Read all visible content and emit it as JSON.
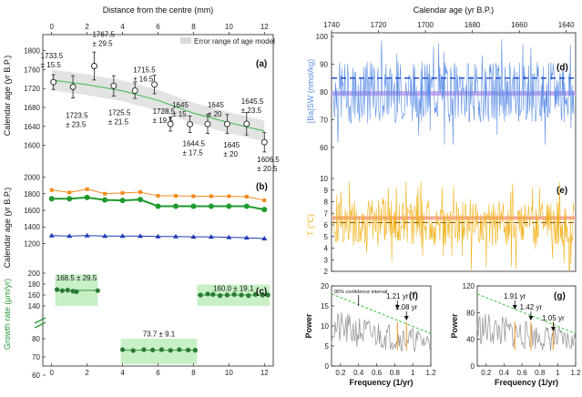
{
  "chart_data": [
    {
      "id": "a",
      "type": "scatter",
      "panel_label": "(a)",
      "xlabel": "Distance from the centre (mm)",
      "ylabel": "Calendar age (yr B.P.)",
      "xlim": [
        -0.5,
        12.5
      ],
      "ylim": [
        1580,
        1830
      ],
      "xticks": [
        0,
        2,
        4,
        6,
        8,
        10,
        12
      ],
      "yticks": [
        1600,
        1640,
        1680,
        1720,
        1760,
        1800
      ],
      "legend": {
        "label": "Error range of age model",
        "position": "top-right"
      },
      "points": [
        {
          "x": 0.1,
          "y": 1733.5,
          "err": 15.5,
          "label": "1733.5\n± 15.5"
        },
        {
          "x": 1.2,
          "y": 1723.5,
          "err": 23.5,
          "label": "1723.5\n± 23.5"
        },
        {
          "x": 2.4,
          "y": 1767.5,
          "err": 29.5,
          "label": "1767.5\n± 29.5"
        },
        {
          "x": 3.5,
          "y": 1725.5,
          "err": 21.5,
          "label": "1725.5\n± 21.5"
        },
        {
          "x": 4.7,
          "y": 1715.5,
          "err": 16.5,
          "label": "1715.5\n± 16.5"
        },
        {
          "x": 5.8,
          "y": 1728.5,
          "err": 19.5,
          "label": "1728.5\n± 19.5"
        },
        {
          "x": 6.7,
          "y": 1645,
          "err": 15,
          "label": "1645\n± 15"
        },
        {
          "x": 7.8,
          "y": 1644.5,
          "err": 17.5,
          "label": "1644.5\n± 17.5"
        },
        {
          "x": 8.8,
          "y": 1645,
          "err": 20,
          "label": "1645\n± 20"
        },
        {
          "x": 9.9,
          "y": 1645,
          "err": 20,
          "label": "1645\n± 20"
        },
        {
          "x": 11.0,
          "y": 1645.5,
          "err": 23.5,
          "label": "1645.5\n± 23.5"
        },
        {
          "x": 12.0,
          "y": 1606.5,
          "err": 20.5,
          "label": "1606.5\n± 20.5"
        }
      ],
      "fit": {
        "x": [
          0,
          2,
          4,
          6,
          8,
          10,
          12
        ],
        "y": [
          1738,
          1728,
          1715,
          1695,
          1668,
          1648,
          1630
        ]
      }
    },
    {
      "id": "b",
      "type": "line",
      "panel_label": "(b)",
      "ylabel": "Calendar age (yr B.P.)",
      "ylim": [
        1150,
        2050
      ],
      "yticks": [
        1200,
        1400,
        1600,
        1800,
        2000
      ],
      "x": [
        0,
        1,
        2,
        3,
        4,
        5,
        6,
        7,
        8,
        9,
        10,
        11,
        12
      ],
      "series": [
        {
          "values": [
            1845,
            1815,
            1855,
            1800,
            1810,
            1820,
            1775,
            1775,
            1770,
            1770,
            1770,
            1765,
            1720
          ],
          "color": "#f28a1c"
        },
        {
          "values": [
            1740,
            1740,
            1755,
            1725,
            1720,
            1730,
            1650,
            1650,
            1650,
            1650,
            1650,
            1650,
            1610
          ],
          "color": "#1e9a2c"
        },
        {
          "values": [
            1295,
            1290,
            1295,
            1290,
            1290,
            1290,
            1285,
            1285,
            1280,
            1280,
            1275,
            1270,
            1260
          ],
          "color": "#1f3bb5"
        }
      ]
    },
    {
      "id": "c",
      "type": "scatter",
      "panel_label": "(c)",
      "xlabel": "",
      "ylabel": "Growth rate (μm/yr)",
      "xticks": [
        0,
        2,
        4,
        6,
        8,
        10,
        12
      ],
      "yticks": [
        60,
        70,
        80,
        140,
        160,
        180,
        200
      ],
      "groups": [
        {
          "label": "168.5 ± 29.5",
          "mean": 168.5,
          "err": 29.5,
          "x_range": [
            0.2,
            2.6
          ],
          "x": [
            0.3,
            0.6,
            0.9,
            1.2,
            1.4,
            2.6
          ],
          "y": [
            170,
            168,
            169,
            167,
            166,
            168
          ]
        },
        {
          "label": "73.7 ± 9.1",
          "mean": 73.7,
          "err": 9.1,
          "x_range": [
            3.9,
            8.2
          ],
          "x": [
            4.0,
            4.6,
            5.2,
            5.7,
            6.2,
            6.7,
            7.2,
            7.7,
            8.1
          ],
          "y": [
            74,
            73.5,
            74,
            73.8,
            74,
            73.6,
            74,
            73.8,
            73.7
          ]
        },
        {
          "label": "160.0 ± 19.1",
          "mean": 160.0,
          "err": 19.1,
          "x_range": [
            8.2,
            12.3
          ],
          "x": [
            8.4,
            8.8,
            9.1,
            9.5,
            9.9,
            10.3,
            10.7,
            11.1,
            11.5,
            11.9,
            12.2
          ],
          "y": [
            160,
            162,
            161,
            159,
            160,
            161,
            160,
            159,
            161,
            160,
            160
          ]
        }
      ]
    },
    {
      "id": "d",
      "type": "line",
      "panel_label": "(d)",
      "xlabel": "Calendar age (yr B.P.)",
      "ylabel": "[Ba]SW (nmol/kg)",
      "xlim": [
        1740,
        1636
      ],
      "xticks": [
        1740,
        1720,
        1700,
        1680,
        1660,
        1640
      ],
      "ylim": [
        60,
        100
      ],
      "yticks": [
        60,
        70,
        80,
        90,
        100
      ],
      "reference_lines": [
        {
          "y": 85,
          "style": "dashed",
          "color": "#1f4fd0"
        },
        {
          "y": 79.5,
          "style": "band",
          "color": "#c9a9f0"
        }
      ],
      "series_color": "#5b8ee6"
    },
    {
      "id": "e",
      "type": "line",
      "panel_label": "(e)",
      "ylabel": "T (°C)",
      "ylim": [
        2,
        10
      ],
      "yticks": [
        2,
        3,
        4,
        5,
        6,
        7,
        8,
        9,
        10
      ],
      "reference_lines": [
        {
          "y": 6.6,
          "style": "band",
          "color": "#f5a9a0"
        },
        {
          "y": 6.2,
          "style": "dashed",
          "color": "#8a5a00"
        }
      ],
      "series_color": "#f2b21a"
    },
    {
      "id": "f",
      "type": "line",
      "panel_label": "(f)",
      "xlabel": "Frequency (1/yr)",
      "ylabel": "Power",
      "xlim": [
        0.1,
        1.2
      ],
      "xticks": [
        0.2,
        0.4,
        0.6,
        0.8,
        1.0,
        1.2
      ],
      "ylim": [
        0,
        20
      ],
      "yticks": [
        0,
        5,
        10,
        15,
        20
      ],
      "confidence_label": "95% confidence interval",
      "peaks": [
        {
          "label": "1.21 yr",
          "x": 0.83
        },
        {
          "label": "1.08 yr",
          "x": 0.93
        }
      ]
    },
    {
      "id": "g",
      "type": "line",
      "panel_label": "(g)",
      "xlabel": "Frequency (1/yr)",
      "ylabel": "Power",
      "xlim": [
        0.1,
        1.2
      ],
      "xticks": [
        0.2,
        0.4,
        0.6,
        0.8,
        1.0,
        1.2
      ],
      "ylim": [
        0,
        120
      ],
      "yticks": [
        0,
        40,
        80,
        120
      ],
      "peaks": [
        {
          "label": "1.91 yr",
          "x": 0.52
        },
        {
          "label": "1.42 yr",
          "x": 0.7
        },
        {
          "label": "1.05 yr",
          "x": 0.95
        }
      ]
    }
  ]
}
